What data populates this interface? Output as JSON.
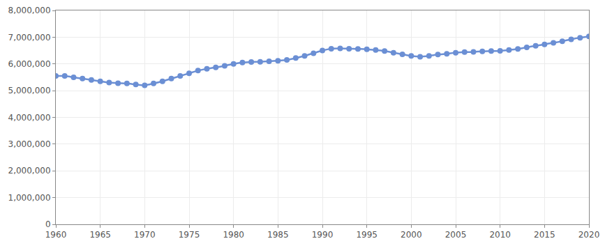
{
  "chart_data": {
    "type": "line",
    "x": [
      1960,
      1961,
      1962,
      1963,
      1964,
      1965,
      1966,
      1967,
      1968,
      1969,
      1970,
      1971,
      1972,
      1973,
      1974,
      1975,
      1976,
      1977,
      1978,
      1979,
      1980,
      1981,
      1982,
      1983,
      1984,
      1985,
      1986,
      1987,
      1988,
      1989,
      1990,
      1991,
      1992,
      1993,
      1994,
      1995,
      1996,
      1997,
      1998,
      1999,
      2000,
      2001,
      2002,
      2003,
      2004,
      2005,
      2006,
      2007,
      2008,
      2009,
      2010,
      2011,
      2012,
      2013,
      2014,
      2015,
      2016,
      2017,
      2018,
      2019,
      2020
    ],
    "values": [
      5550000,
      5550000,
      5500000,
      5450000,
      5400000,
      5350000,
      5300000,
      5280000,
      5270000,
      5230000,
      5200000,
      5270000,
      5350000,
      5450000,
      5550000,
      5650000,
      5750000,
      5820000,
      5870000,
      5930000,
      6000000,
      6050000,
      6070000,
      6080000,
      6100000,
      6120000,
      6150000,
      6220000,
      6300000,
      6400000,
      6500000,
      6570000,
      6580000,
      6570000,
      6560000,
      6550000,
      6520000,
      6480000,
      6420000,
      6360000,
      6300000,
      6270000,
      6300000,
      6350000,
      6380000,
      6420000,
      6440000,
      6450000,
      6470000,
      6480000,
      6490000,
      6520000,
      6560000,
      6620000,
      6680000,
      6730000,
      6790000,
      6850000,
      6920000,
      6980000,
      7030000
    ],
    "color": "#6b8fd4",
    "marker": "circle",
    "line_style": "solid",
    "grid": true,
    "xlim": [
      1960,
      2020
    ],
    "xticks": [
      1960,
      1965,
      1970,
      1975,
      1980,
      1985,
      1990,
      1995,
      2000,
      2005,
      2010,
      2015,
      2020
    ],
    "ylim": [
      0,
      8000000
    ],
    "yticks": [
      0,
      {
        "value": 1000000,
        "label": "1,000,000"
      },
      {
        "value": 2000000,
        "label": "2,000,000"
      },
      {
        "value": 3000000,
        "label": "3,000,000"
      },
      {
        "value": 4000000,
        "label": "4,000,000"
      },
      {
        "value": 5000000,
        "label": "5,000,000"
      },
      {
        "value": 6000000,
        "label": "6,000,000"
      },
      {
        "value": 7000000,
        "label": "7,000,000"
      },
      {
        "value": 8000000,
        "label": "8,000,000"
      }
    ]
  }
}
